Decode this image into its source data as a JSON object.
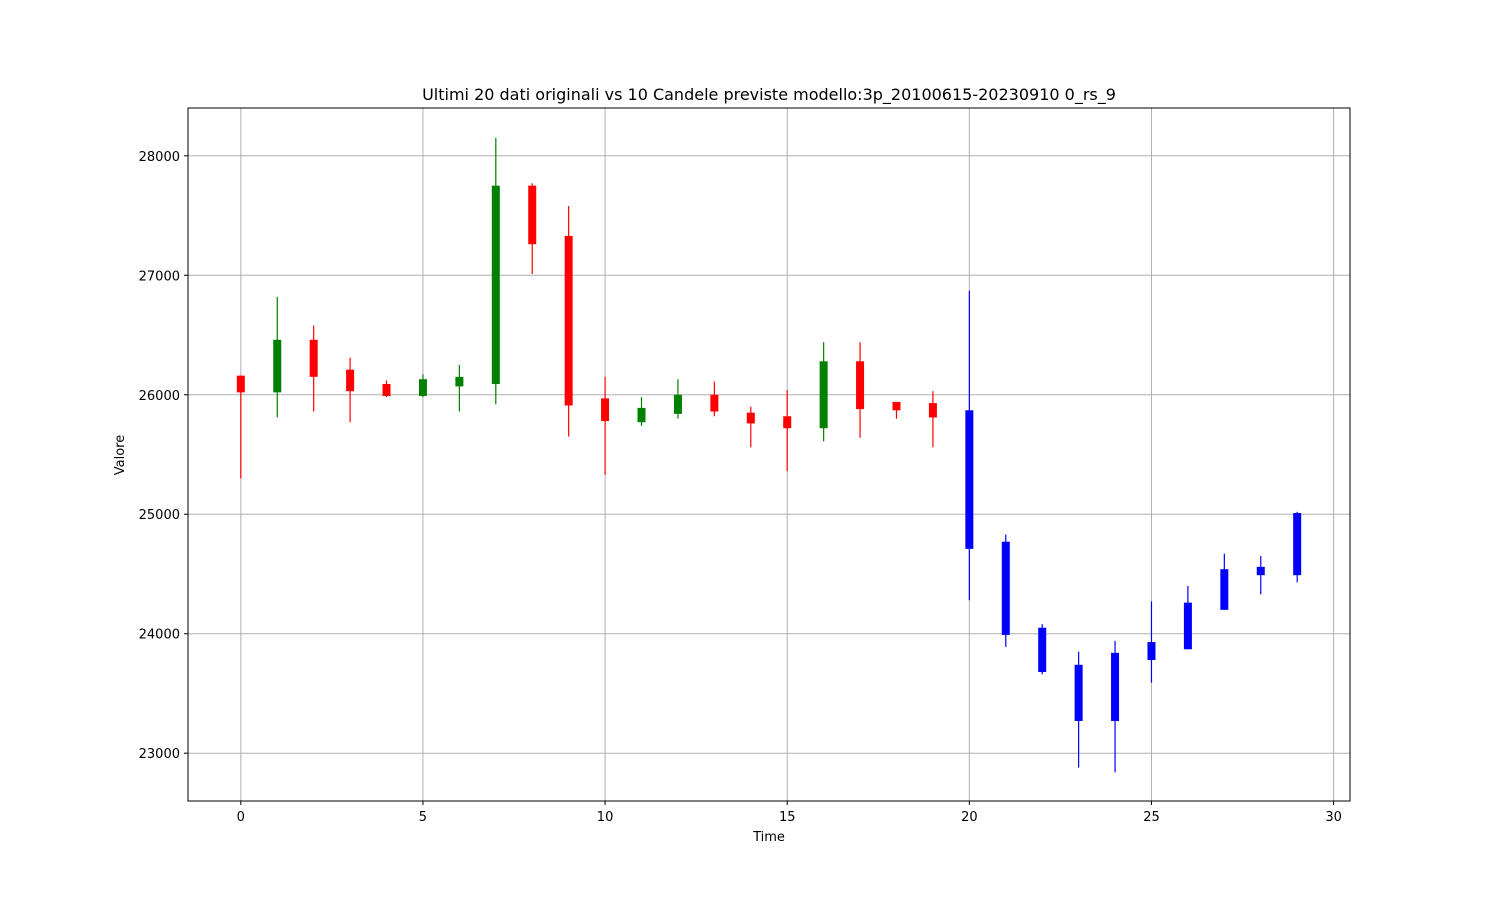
{
  "chart_data": {
    "type": "candlestick",
    "title": "Ultimi 20 dati originali vs 10 Candele previste modello:3p_20100615-20230910 0_rs_9",
    "xlabel": "Time",
    "ylabel": "Valore",
    "xlim": [
      -1.45,
      30.45
    ],
    "ylim": [
      22600,
      28400
    ],
    "xticks": [
      0,
      5,
      10,
      15,
      20,
      25,
      30
    ],
    "yticks": [
      23000,
      24000,
      25000,
      26000,
      27000,
      28000
    ],
    "grid": true,
    "colors": {
      "up": "#008000",
      "down": "#ff0000",
      "forecast": "#0000ff"
    },
    "candles": [
      {
        "t": 0,
        "open": 26160,
        "high": 26160,
        "low": 25300,
        "close": 26020,
        "kind": "down"
      },
      {
        "t": 1,
        "open": 26020,
        "high": 26820,
        "low": 25810,
        "close": 26460,
        "kind": "up"
      },
      {
        "t": 2,
        "open": 26460,
        "high": 26580,
        "low": 25860,
        "close": 26150,
        "kind": "down"
      },
      {
        "t": 3,
        "open": 26210,
        "high": 26310,
        "low": 25770,
        "close": 26030,
        "kind": "down"
      },
      {
        "t": 4,
        "open": 26090,
        "high": 26120,
        "low": 25980,
        "close": 25990,
        "kind": "down"
      },
      {
        "t": 5,
        "open": 25990,
        "high": 26170,
        "low": 25980,
        "close": 26130,
        "kind": "up"
      },
      {
        "t": 6,
        "open": 26070,
        "high": 26250,
        "low": 25860,
        "close": 26150,
        "kind": "up"
      },
      {
        "t": 7,
        "open": 26090,
        "high": 28150,
        "low": 25920,
        "close": 27750,
        "kind": "up"
      },
      {
        "t": 8,
        "open": 27750,
        "high": 27770,
        "low": 27010,
        "close": 27260,
        "kind": "down"
      },
      {
        "t": 9,
        "open": 27330,
        "high": 27580,
        "low": 25650,
        "close": 25910,
        "kind": "down"
      },
      {
        "t": 10,
        "open": 25970,
        "high": 26150,
        "low": 25330,
        "close": 25780,
        "kind": "down"
      },
      {
        "t": 11,
        "open": 25770,
        "high": 25980,
        "low": 25740,
        "close": 25890,
        "kind": "up"
      },
      {
        "t": 12,
        "open": 25840,
        "high": 26130,
        "low": 25800,
        "close": 26000,
        "kind": "up"
      },
      {
        "t": 13,
        "open": 26000,
        "high": 26110,
        "low": 25820,
        "close": 25860,
        "kind": "down"
      },
      {
        "t": 14,
        "open": 25850,
        "high": 25900,
        "low": 25560,
        "close": 25760,
        "kind": "down"
      },
      {
        "t": 15,
        "open": 25820,
        "high": 26040,
        "low": 25360,
        "close": 25720,
        "kind": "down"
      },
      {
        "t": 16,
        "open": 25720,
        "high": 26440,
        "low": 25610,
        "close": 26280,
        "kind": "up"
      },
      {
        "t": 17,
        "open": 26280,
        "high": 26440,
        "low": 25640,
        "close": 25880,
        "kind": "down"
      },
      {
        "t": 18,
        "open": 25940,
        "high": 25940,
        "low": 25800,
        "close": 25870,
        "kind": "down"
      },
      {
        "t": 19,
        "open": 25930,
        "high": 26030,
        "low": 25560,
        "close": 25810,
        "kind": "down"
      },
      {
        "t": 20,
        "open": 25870,
        "high": 26870,
        "low": 24280,
        "close": 24710,
        "kind": "forecast"
      },
      {
        "t": 21,
        "open": 24770,
        "high": 24830,
        "low": 23890,
        "close": 23990,
        "kind": "forecast"
      },
      {
        "t": 22,
        "open": 24050,
        "high": 24080,
        "low": 23660,
        "close": 23680,
        "kind": "forecast"
      },
      {
        "t": 23,
        "open": 23740,
        "high": 23850,
        "low": 22880,
        "close": 23270,
        "kind": "forecast"
      },
      {
        "t": 24,
        "open": 23270,
        "high": 23940,
        "low": 22840,
        "close": 23840,
        "kind": "forecast"
      },
      {
        "t": 25,
        "open": 23780,
        "high": 24270,
        "low": 23590,
        "close": 23930,
        "kind": "forecast"
      },
      {
        "t": 26,
        "open": 23870,
        "high": 24400,
        "low": 23870,
        "close": 24260,
        "kind": "forecast"
      },
      {
        "t": 27,
        "open": 24200,
        "high": 24670,
        "low": 24200,
        "close": 24540,
        "kind": "forecast"
      },
      {
        "t": 28,
        "open": 24490,
        "high": 24650,
        "low": 24330,
        "close": 24560,
        "kind": "forecast"
      },
      {
        "t": 29,
        "open": 24490,
        "high": 25020,
        "low": 24430,
        "close": 25010,
        "kind": "forecast"
      }
    ]
  }
}
